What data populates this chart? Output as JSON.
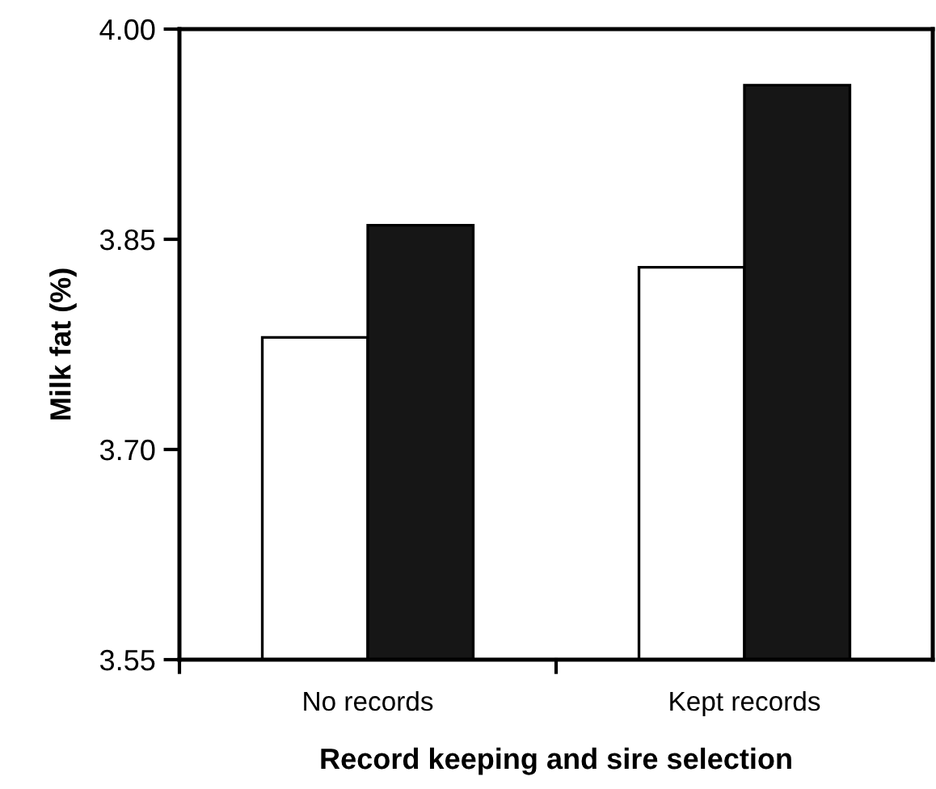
{
  "chart_data": {
    "type": "bar",
    "xlabel": "Record keeping and sire selection",
    "ylabel": "Milk fat (%)",
    "categories": [
      "No records",
      "Kept records"
    ],
    "series": [
      {
        "color": "#ffffff",
        "values": [
          3.78,
          3.83
        ]
      },
      {
        "color": "#161616",
        "values": [
          3.86,
          3.96
        ]
      }
    ],
    "ylim": [
      3.55,
      4.0
    ],
    "yticks": [
      {
        "value": 3.55,
        "label": "3.55"
      },
      {
        "value": 3.7,
        "label": "3.70"
      },
      {
        "value": 3.85,
        "label": "3.85"
      },
      {
        "value": 4.0,
        "label": "4.00"
      }
    ],
    "grid": false,
    "legend": false
  }
}
